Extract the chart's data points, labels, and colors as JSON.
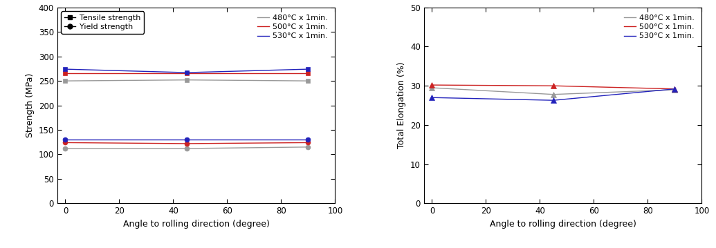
{
  "angles": [
    0,
    45,
    90
  ],
  "left_chart": {
    "ylabel": "Strength (MPa)",
    "xlabel": "Angle to rolling direction (degree)",
    "ylim": [
      0,
      400
    ],
    "yticks": [
      0,
      50,
      100,
      150,
      200,
      250,
      300,
      350,
      400
    ],
    "xlim": [
      -3,
      100
    ],
    "xticks": [
      0,
      20,
      40,
      60,
      80,
      100
    ],
    "tensile": {
      "480": [
        250,
        252,
        250
      ],
      "500": [
        265,
        265,
        265
      ],
      "530": [
        274,
        267,
        274
      ]
    },
    "yield": {
      "480": [
        112,
        112,
        115
      ],
      "500": [
        124,
        122,
        124
      ],
      "530": [
        130,
        130,
        130
      ]
    },
    "colors": {
      "480": "#999999",
      "500": "#cc2222",
      "530": "#2222bb"
    },
    "legend1_labels": [
      "Tensile strength",
      "Yield strength"
    ],
    "legend2_labels": [
      "480°C x 1min.",
      "500°C x 1min.",
      "530°C x 1min."
    ]
  },
  "right_chart": {
    "ylabel": "Total Elongation (%)",
    "xlabel": "Angle to rolling direction (degree)",
    "ylim": [
      0,
      50
    ],
    "yticks": [
      0,
      10,
      20,
      30,
      40,
      50
    ],
    "xlim": [
      -3,
      100
    ],
    "xticks": [
      0,
      20,
      40,
      60,
      80,
      100
    ],
    "elongation": {
      "480": [
        29.5,
        27.8,
        29.0
      ],
      "500": [
        30.2,
        30.0,
        29.2
      ],
      "530": [
        27.0,
        26.3,
        29.2
      ]
    },
    "colors": {
      "480": "#999999",
      "500": "#cc2222",
      "530": "#2222bb"
    },
    "legend_labels": [
      "480°C x 1min.",
      "500°C x 1min.",
      "530°C x 1min."
    ]
  }
}
